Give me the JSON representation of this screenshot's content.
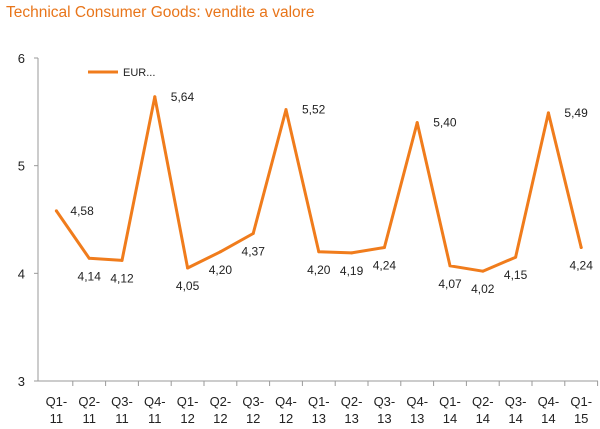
{
  "chart_data": {
    "type": "line",
    "title": "Technical Consumer Goods: vendite a valore",
    "categories": [
      [
        "Q1-",
        "11"
      ],
      [
        "Q2-",
        "11"
      ],
      [
        "Q3-",
        "11"
      ],
      [
        "Q4-",
        "11"
      ],
      [
        "Q1-",
        "12"
      ],
      [
        "Q2-",
        "12"
      ],
      [
        "Q3-",
        "12"
      ],
      [
        "Q4-",
        "12"
      ],
      [
        "Q1-",
        "13"
      ],
      [
        "Q2-",
        "13"
      ],
      [
        "Q3-",
        "13"
      ],
      [
        "Q4-",
        "13"
      ],
      [
        "Q1-",
        "14"
      ],
      [
        "Q2-",
        "14"
      ],
      [
        "Q3-",
        "14"
      ],
      [
        "Q4-",
        "14"
      ],
      [
        "Q1-",
        "15"
      ]
    ],
    "series": [
      {
        "name": "EUR...",
        "color": "#f07c1c",
        "values": [
          4.58,
          4.14,
          4.12,
          5.64,
          4.05,
          4.2,
          4.37,
          5.52,
          4.2,
          4.19,
          4.24,
          5.4,
          4.07,
          4.02,
          4.15,
          5.49,
          4.24
        ],
        "labels": [
          "4,58",
          "4,14",
          "4,12",
          "5,64",
          "4,05",
          "4,20",
          "4,37",
          "5,52",
          "4,20",
          "4,19",
          "4,24",
          "5,40",
          "4,07",
          "4,02",
          "4,15",
          "5,49",
          "4,24"
        ]
      }
    ],
    "ylim": [
      3,
      6
    ],
    "yticks": [
      "3",
      "4",
      "5",
      "6"
    ],
    "grid": false,
    "legend": "top-left"
  }
}
